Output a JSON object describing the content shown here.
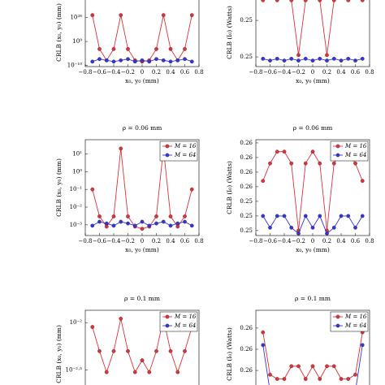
{
  "chart_data": [
    {
      "type": "line",
      "ylabel": "CRLB (x₀, y₀) (mm)",
      "xlabel": "x₀, y₀ (mm)",
      "log_y": true,
      "x": [
        -0.7,
        -0.6,
        -0.5,
        -0.4,
        -0.3,
        -0.2,
        -0.1,
        0,
        0.1,
        0.2,
        0.3,
        0.4,
        0.5,
        0.6,
        0.7
      ],
      "xlim": [
        -0.8,
        0.8
      ],
      "xticks": [
        {
          "value": -0.8,
          "label": "−0.8"
        },
        {
          "value": -0.6,
          "label": "−0.6"
        },
        {
          "value": -0.4,
          "label": "−0.4"
        },
        {
          "value": -0.2,
          "label": "−0.2"
        },
        0,
        0.2,
        0.4,
        0.6,
        0.8
      ],
      "ylim": [
        1e-11,
        1e+44
      ],
      "yticks": [
        {
          "value": 1e-10,
          "label": "10⁻¹⁰"
        },
        {
          "value": 1000000000.0,
          "label": "10⁹"
        },
        {
          "value": 1e+28,
          "label": "10²⁸"
        }
      ],
      "series": [
        {
          "name": "M = 16",
          "color": "#e0303a",
          "values": [
            1e+30,
            1000.0,
            1e-06,
            1000.0,
            1e+30,
            1000.0,
            1e-06,
            1e-07,
            1e-06,
            1000.0,
            1e+30,
            1000.0,
            1e-06,
            1000.0,
            1e+30
          ]
        },
        {
          "name": "M = 64",
          "color": "#3434d8",
          "values": [
            1e-07,
            1e-05,
            1e-06,
            1e-07,
            1e-06,
            1e-05,
            1e-07,
            1e-06,
            1e-07,
            1e-05,
            1e-06,
            1e-07,
            1e-06,
            1e-05,
            1e-07
          ]
        }
      ]
    },
    {
      "type": "line",
      "ylabel": "CRLB (I₀) (Watts)",
      "xlabel": "x₀, y₀ (mm)",
      "log_y": false,
      "x": [
        -0.7,
        -0.6,
        -0.5,
        -0.4,
        -0.3,
        -0.2,
        -0.1,
        0,
        0.1,
        0.2,
        0.3,
        0.4,
        0.5,
        0.6,
        0.7
      ],
      "xlim": [
        -0.8,
        0.8
      ],
      "xticks": [
        {
          "value": -0.8,
          "label": "−0.8"
        },
        {
          "value": -0.6,
          "label": "−0.6"
        },
        {
          "value": -0.4,
          "label": "−0.4"
        },
        {
          "value": -0.2,
          "label": "−0.2"
        },
        0,
        0.2,
        0.4,
        0.6,
        0.8
      ],
      "ylim": [
        0.24997,
        0.25406
      ],
      "yticks": [
        {
          "value": 0.2525,
          "label": "0.25"
        },
        {
          "value": 0.2505,
          "label": "0.25"
        }
      ],
      "series": [
        {
          "name": "M = 16",
          "color": "#e0303a",
          "values": [
            0.2536,
            0.2538,
            0.2536,
            0.2538,
            0.2536,
            0.2506,
            0.2536,
            0.2538,
            0.2536,
            0.2506,
            0.2536,
            0.2538,
            0.2536,
            0.2538,
            0.2536
          ]
        },
        {
          "name": "M = 64",
          "color": "#3434d8",
          "values": [
            0.2504,
            0.2503,
            0.2504,
            0.2503,
            0.2504,
            0.2503,
            0.2504,
            0.2503,
            0.2504,
            0.2503,
            0.2504,
            0.2503,
            0.2504,
            0.2503,
            0.2504
          ]
        }
      ]
    },
    {
      "type": "line",
      "title": "ρ = 0.06 mm",
      "ylabel": "CRLB (x₀, y₀) (mm)",
      "xlabel": "x₀, y₀ (mm)",
      "log_y": true,
      "legend": "upper right",
      "x": [
        -0.7,
        -0.6,
        -0.5,
        -0.4,
        -0.3,
        -0.2,
        -0.1,
        0,
        0.1,
        0.2,
        0.3,
        0.4,
        0.5,
        0.6,
        0.7
      ],
      "xlim": [
        -0.8,
        0.8
      ],
      "xticks": [
        {
          "value": -0.8,
          "label": "−0.8"
        },
        {
          "value": -0.6,
          "label": "−0.6"
        },
        {
          "value": -0.4,
          "label": "−0.4"
        },
        {
          "value": -0.2,
          "label": "−0.2"
        },
        0,
        0.2,
        0.4,
        0.6,
        0.8
      ],
      "ylim": [
        0.00025,
        63
      ],
      "yticks": [
        {
          "value": 10,
          "label": "10¹"
        },
        {
          "value": 1,
          "label": "10⁰"
        },
        {
          "value": 0.1,
          "label": "10⁻¹"
        },
        {
          "value": 0.01,
          "label": "10⁻²"
        },
        {
          "value": 0.001,
          "label": "10⁻³"
        }
      ],
      "series": [
        {
          "name": "M = 16",
          "color": "#e0303a",
          "values": [
            0.1,
            0.003,
            0.0008,
            0.003,
            20,
            0.003,
            0.0008,
            0.0006,
            0.0008,
            0.003,
            20,
            0.003,
            0.0008,
            0.003,
            0.1
          ]
        },
        {
          "name": "M = 64",
          "color": "#3434d8",
          "values": [
            0.0009,
            0.0015,
            0.0012,
            0.0009,
            0.0015,
            0.0012,
            0.0009,
            0.0015,
            0.0009,
            0.0012,
            0.0015,
            0.0009,
            0.0012,
            0.0015,
            0.0009
          ]
        }
      ]
    },
    {
      "type": "line",
      "title": "ρ = 0.06 mm",
      "ylabel": "CRLB (I₀) (Watts)",
      "xlabel": "x₀, y₀ (mm)",
      "log_y": false,
      "legend": "upper right",
      "x": [
        -0.7,
        -0.6,
        -0.5,
        -0.4,
        -0.3,
        -0.2,
        -0.1,
        0,
        0.1,
        0.2,
        0.3,
        0.4,
        0.5,
        0.6,
        0.7
      ],
      "xlim": [
        -0.8,
        0.8
      ],
      "xticks": [
        {
          "value": -0.8,
          "label": "−0.8"
        },
        {
          "value": -0.6,
          "label": "−0.6"
        },
        {
          "value": -0.4,
          "label": "−0.4"
        },
        {
          "value": -0.2,
          "label": "−0.2"
        },
        0,
        0.2,
        0.4,
        0.6,
        0.8
      ],
      "ylim": [
        0.25333,
        0.25661
      ],
      "yticks": [
        {
          "value": 0.2565,
          "label": "0.26"
        },
        {
          "value": 0.256,
          "label": "0.26"
        },
        {
          "value": 0.2555,
          "label": "0.26"
        },
        {
          "value": 0.255,
          "label": "0.26"
        },
        {
          "value": 0.2545,
          "label": "0.25"
        },
        {
          "value": 0.254,
          "label": "0.25"
        },
        {
          "value": 0.2535,
          "label": "0.25"
        }
      ],
      "series": [
        {
          "name": "M = 16",
          "color": "#e0303a",
          "values": [
            0.2552,
            0.2558,
            0.2562,
            0.2562,
            0.2558,
            0.2535,
            0.2558,
            0.2562,
            0.2558,
            0.2535,
            0.2558,
            0.2562,
            0.2562,
            0.2558,
            0.2552
          ]
        },
        {
          "name": "M = 64",
          "color": "#3434d8",
          "values": [
            0.254,
            0.2536,
            0.254,
            0.254,
            0.2536,
            0.2534,
            0.254,
            0.2536,
            0.254,
            0.2534,
            0.2536,
            0.254,
            0.254,
            0.2536,
            0.254
          ]
        }
      ]
    },
    {
      "type": "line",
      "title": "ρ = 0.1 mm",
      "ylabel": "CRLB (x₀, y₀) (mm)",
      "log_y": true,
      "legend": "upper right",
      "x": [
        -0.7,
        -0.6,
        -0.5,
        -0.4,
        -0.3,
        -0.2,
        -0.1,
        0,
        0.1,
        0.2,
        0.3,
        0.4,
        0.5,
        0.6,
        0.7
      ],
      "xlim": [
        -0.8,
        0.8
      ],
      "ylim": [
        0.0016,
        0.0135
      ],
      "yticks": [
        {
          "value": 0.01,
          "label": "10⁻²"
        },
        {
          "value": 0.00316,
          "label": "10⁻²·⁵"
        }
      ],
      "series": [
        {
          "name": "M = 16",
          "color": "#e0303a",
          "values": [
            0.009,
            0.005,
            0.003,
            0.005,
            0.011,
            0.005,
            0.003,
            0.004,
            0.003,
            0.005,
            0.011,
            0.005,
            0.003,
            0.005,
            0.009
          ]
        },
        {
          "name": "M = 64",
          "color": "#3434d8",
          "values": [
            0.002,
            0.0019,
            0.002,
            0.0019,
            0.002,
            0.0019,
            0.002,
            0.0019,
            0.002,
            0.0019,
            0.002,
            0.0019,
            0.002,
            0.0019,
            0.002
          ]
        }
      ]
    },
    {
      "type": "line",
      "title": "ρ = 0.1 mm",
      "ylabel": "CRLB (I₀) (Watts)",
      "log_y": false,
      "legend": "upper right",
      "x": [
        -0.7,
        -0.6,
        -0.5,
        -0.4,
        -0.3,
        -0.2,
        -0.1,
        0,
        0.1,
        0.2,
        0.3,
        0.4,
        0.5,
        0.6,
        0.7
      ],
      "xlim": [
        -0.8,
        0.8
      ],
      "ylim": [
        0.25635,
        0.25842
      ],
      "yticks": [
        {
          "value": 0.258,
          "label": "0.26"
        },
        {
          "value": 0.2575,
          "label": "0.26"
        },
        {
          "value": 0.257,
          "label": "0.26"
        }
      ],
      "series": [
        {
          "name": "M = 16",
          "color": "#e0303a",
          "values": [
            0.2579,
            0.2569,
            0.2568,
            0.2568,
            0.2571,
            0.2571,
            0.2568,
            0.2571,
            0.2568,
            0.2571,
            0.2571,
            0.2568,
            0.2568,
            0.2569,
            0.2579
          ]
        },
        {
          "name": "M = 64",
          "color": "#3434d8",
          "values": [
            0.2576,
            0.2565,
            0.2565,
            0.2565,
            0.2565,
            0.2565,
            0.2565,
            0.2565,
            0.2565,
            0.2565,
            0.2565,
            0.2565,
            0.2565,
            0.2565,
            0.2576
          ]
        }
      ]
    }
  ]
}
